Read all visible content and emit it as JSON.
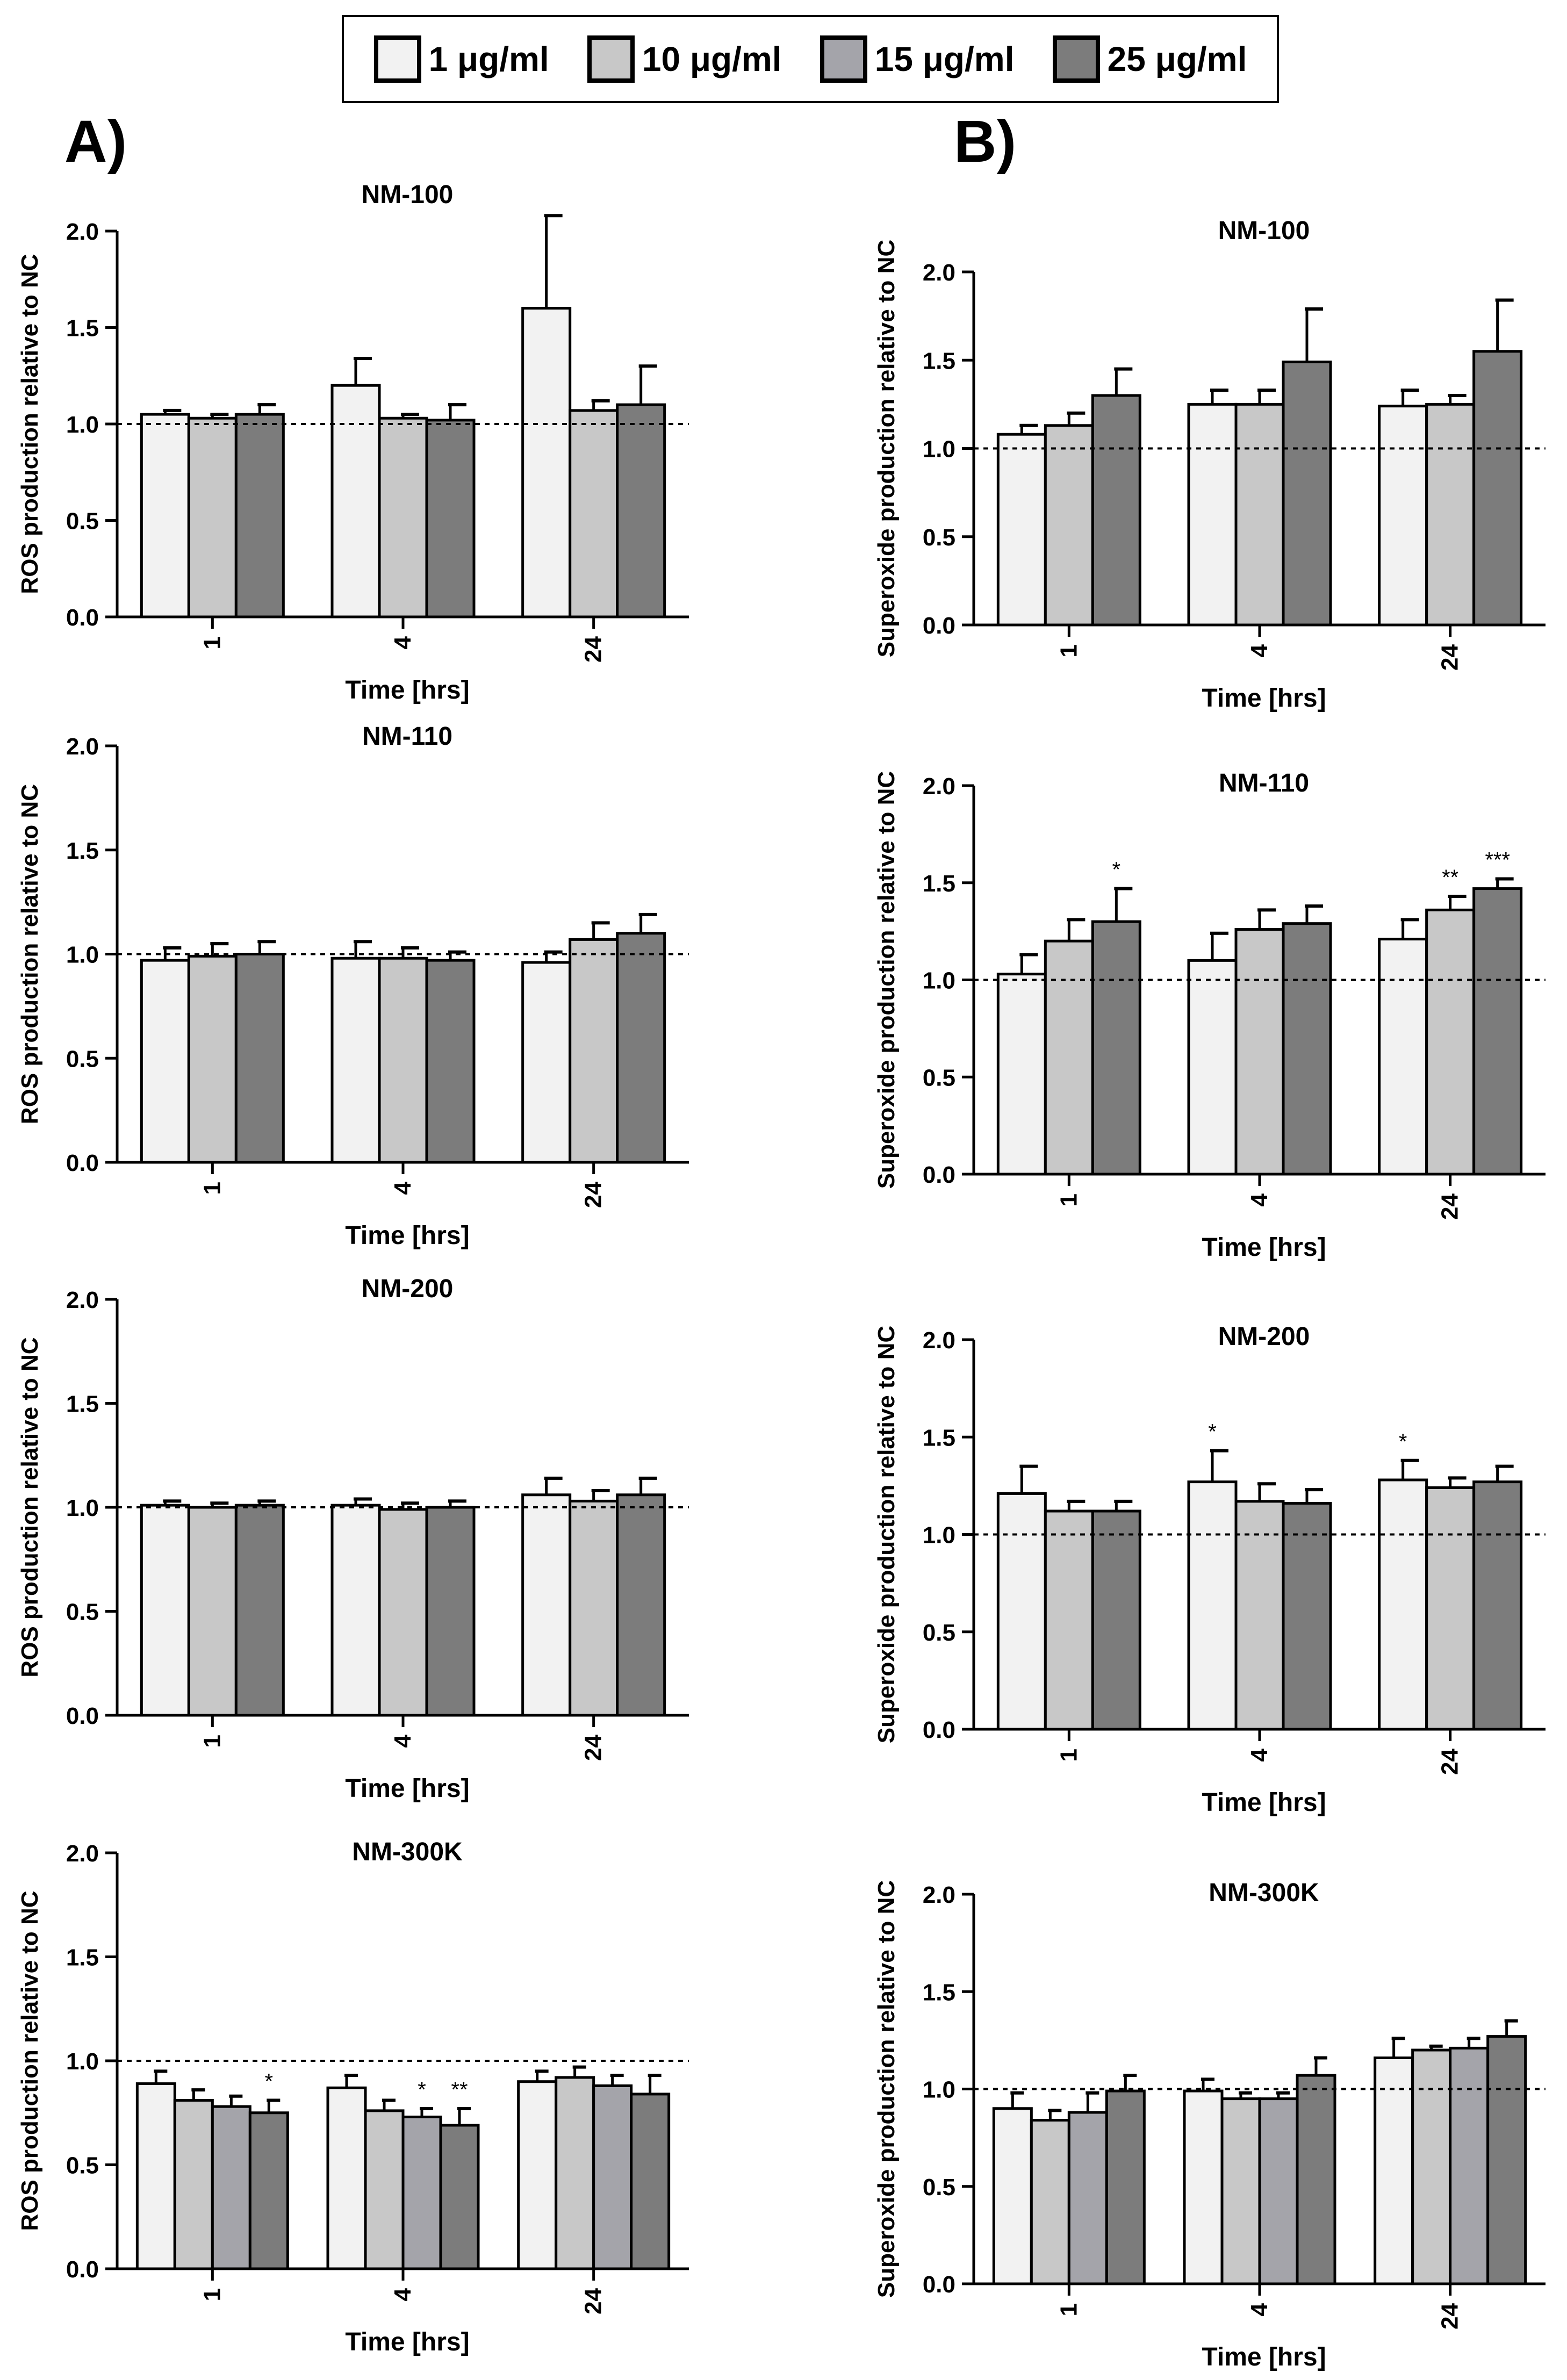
{
  "legend": [
    {
      "label": "1 μg/ml",
      "color": "#f2f2f2"
    },
    {
      "label": "10 μg/ml",
      "color": "#c8c8c8"
    },
    {
      "label": "15 μg/ml",
      "color": "#a4a4aa"
    },
    {
      "label": "25 μg/ml",
      "color": "#7c7c7c"
    }
  ],
  "panels": {
    "A": "A)",
    "B": "B)"
  },
  "axis_common": {
    "ticks": [
      "0.0",
      "0.5",
      "1.0",
      "1.5",
      "2.0"
    ],
    "xlabel": "Time [hrs]"
  },
  "chart_data": [
    {
      "type": "bar",
      "panel": "A",
      "title": "NM-100",
      "xlabel": "Time [hrs]",
      "ylabel": "ROS production relative to NC",
      "categories": [
        "1",
        "4",
        "24"
      ],
      "ylim": [
        0,
        2.0
      ],
      "reference_line": 1.0,
      "series": [
        {
          "name": "1 μg/ml",
          "values": [
            1.05,
            1.2,
            1.6
          ],
          "errors": [
            0.02,
            0.14,
            0.48
          ],
          "sig": [
            "",
            "",
            ""
          ]
        },
        {
          "name": "10 μg/ml",
          "values": [
            1.03,
            1.03,
            1.07
          ],
          "errors": [
            0.02,
            0.02,
            0.05
          ],
          "sig": [
            "",
            "",
            ""
          ]
        },
        {
          "name": "25 μg/ml",
          "values": [
            1.05,
            1.02,
            1.1
          ],
          "errors": [
            0.05,
            0.08,
            0.2
          ],
          "sig": [
            "",
            "",
            ""
          ]
        }
      ]
    },
    {
      "type": "bar",
      "panel": "A",
      "title": "NM-110",
      "xlabel": "Time [hrs]",
      "ylabel": "ROS production relative to NC",
      "categories": [
        "1",
        "4",
        "24"
      ],
      "ylim": [
        0,
        2.0
      ],
      "reference_line": 1.0,
      "series": [
        {
          "name": "1 μg/ml",
          "values": [
            0.97,
            0.98,
            0.96
          ],
          "errors": [
            0.06,
            0.08,
            0.05
          ],
          "sig": [
            "",
            "",
            ""
          ]
        },
        {
          "name": "10 μg/ml",
          "values": [
            0.99,
            0.98,
            1.07
          ],
          "errors": [
            0.06,
            0.05,
            0.08
          ],
          "sig": [
            "",
            "",
            ""
          ]
        },
        {
          "name": "25 μg/ml",
          "values": [
            1.0,
            0.97,
            1.1
          ],
          "errors": [
            0.06,
            0.04,
            0.09
          ],
          "sig": [
            "",
            "",
            ""
          ]
        }
      ]
    },
    {
      "type": "bar",
      "panel": "A",
      "title": "NM-200",
      "xlabel": "Time [hrs]",
      "ylabel": "ROS production relative to NC",
      "categories": [
        "1",
        "4",
        "24"
      ],
      "ylim": [
        0,
        2.0
      ],
      "reference_line": 1.0,
      "series": [
        {
          "name": "1 μg/ml",
          "values": [
            1.01,
            1.01,
            1.06
          ],
          "errors": [
            0.02,
            0.03,
            0.08
          ],
          "sig": [
            "",
            "",
            ""
          ]
        },
        {
          "name": "10 μg/ml",
          "values": [
            1.0,
            0.99,
            1.03
          ],
          "errors": [
            0.02,
            0.03,
            0.05
          ],
          "sig": [
            "",
            "",
            ""
          ]
        },
        {
          "name": "25 μg/ml",
          "values": [
            1.01,
            1.0,
            1.06
          ],
          "errors": [
            0.02,
            0.03,
            0.08
          ],
          "sig": [
            "",
            "",
            ""
          ]
        }
      ]
    },
    {
      "type": "bar",
      "panel": "A",
      "title": "NM-300K",
      "xlabel": "Time [hrs]",
      "ylabel": "ROS production relative to NC",
      "categories": [
        "1",
        "4",
        "24"
      ],
      "ylim": [
        0,
        2.0
      ],
      "reference_line": 1.0,
      "series": [
        {
          "name": "1 μg/ml",
          "values": [
            0.89,
            0.87,
            0.9
          ],
          "errors": [
            0.06,
            0.06,
            0.05
          ],
          "sig": [
            "",
            "",
            ""
          ]
        },
        {
          "name": "10 μg/ml",
          "values": [
            0.81,
            0.76,
            0.92
          ],
          "errors": [
            0.05,
            0.05,
            0.05
          ],
          "sig": [
            "",
            "",
            ""
          ]
        },
        {
          "name": "15 μg/ml",
          "values": [
            0.78,
            0.73,
            0.88
          ],
          "errors": [
            0.05,
            0.04,
            0.05
          ],
          "sig": [
            "",
            "*",
            ""
          ]
        },
        {
          "name": "25 μg/ml",
          "values": [
            0.75,
            0.69,
            0.84
          ],
          "errors": [
            0.06,
            0.08,
            0.09
          ],
          "sig": [
            "*",
            "**",
            ""
          ]
        }
      ]
    },
    {
      "type": "bar",
      "panel": "B",
      "title": "NM-100",
      "xlabel": "Time [hrs]",
      "ylabel": "Superoxide production relative to NC",
      "categories": [
        "1",
        "4",
        "24"
      ],
      "ylim": [
        0,
        2.0
      ],
      "reference_line": 1.0,
      "series": [
        {
          "name": "1 μg/ml",
          "values": [
            1.08,
            1.25,
            1.24
          ],
          "errors": [
            0.05,
            0.08,
            0.09
          ],
          "sig": [
            "",
            "",
            ""
          ]
        },
        {
          "name": "10 μg/ml",
          "values": [
            1.13,
            1.25,
            1.25
          ],
          "errors": [
            0.07,
            0.08,
            0.05
          ],
          "sig": [
            "",
            "",
            ""
          ]
        },
        {
          "name": "25 μg/ml",
          "values": [
            1.3,
            1.49,
            1.55
          ],
          "errors": [
            0.15,
            0.3,
            0.29
          ],
          "sig": [
            "",
            "",
            ""
          ]
        }
      ]
    },
    {
      "type": "bar",
      "panel": "B",
      "title": "NM-110",
      "xlabel": "Time [hrs]",
      "ylabel": "Superoxide production relative to NC",
      "categories": [
        "1",
        "4",
        "24"
      ],
      "ylim": [
        0,
        2.0
      ],
      "reference_line": 1.0,
      "series": [
        {
          "name": "1 μg/ml",
          "values": [
            1.03,
            1.1,
            1.21
          ],
          "errors": [
            0.1,
            0.14,
            0.1
          ],
          "sig": [
            "",
            "",
            ""
          ]
        },
        {
          "name": "10 μg/ml",
          "values": [
            1.2,
            1.26,
            1.36
          ],
          "errors": [
            0.11,
            0.1,
            0.07
          ],
          "sig": [
            "",
            "",
            "**"
          ]
        },
        {
          "name": "25 μg/ml",
          "values": [
            1.3,
            1.29,
            1.47
          ],
          "errors": [
            0.17,
            0.09,
            0.05
          ],
          "sig": [
            "*",
            "",
            "***"
          ]
        }
      ]
    },
    {
      "type": "bar",
      "panel": "B",
      "title": "NM-200",
      "xlabel": "Time [hrs]",
      "ylabel": "Superoxide production relative to NC",
      "categories": [
        "1",
        "4",
        "24"
      ],
      "ylim": [
        0,
        2.0
      ],
      "reference_line": 1.0,
      "series": [
        {
          "name": "1 μg/ml",
          "values": [
            1.21,
            1.27,
            1.28
          ],
          "errors": [
            0.14,
            0.16,
            0.1
          ],
          "sig": [
            "",
            "*",
            "*"
          ]
        },
        {
          "name": "10 μg/ml",
          "values": [
            1.12,
            1.17,
            1.24
          ],
          "errors": [
            0.05,
            0.09,
            0.05
          ],
          "sig": [
            "",
            "",
            ""
          ]
        },
        {
          "name": "25 μg/ml",
          "values": [
            1.12,
            1.16,
            1.27
          ],
          "errors": [
            0.05,
            0.07,
            0.08
          ],
          "sig": [
            "",
            "",
            ""
          ]
        }
      ]
    },
    {
      "type": "bar",
      "panel": "B",
      "title": "NM-300K",
      "xlabel": "Time [hrs]",
      "ylabel": "Superoxide production relative to NC",
      "categories": [
        "1",
        "4",
        "24"
      ],
      "ylim": [
        0,
        2.0
      ],
      "reference_line": 1.0,
      "series": [
        {
          "name": "1 μg/ml",
          "values": [
            0.9,
            0.99,
            1.16
          ],
          "errors": [
            0.08,
            0.06,
            0.1
          ],
          "sig": [
            "",
            "",
            ""
          ]
        },
        {
          "name": "10 μg/ml",
          "values": [
            0.84,
            0.95,
            1.2
          ],
          "errors": [
            0.05,
            0.03,
            0.02
          ],
          "sig": [
            "",
            "",
            ""
          ]
        },
        {
          "name": "15 μg/ml",
          "values": [
            0.88,
            0.95,
            1.21
          ],
          "errors": [
            0.1,
            0.03,
            0.05
          ],
          "sig": [
            "",
            "",
            ""
          ]
        },
        {
          "name": "25 μg/ml",
          "values": [
            0.99,
            1.07,
            1.27
          ],
          "errors": [
            0.08,
            0.09,
            0.08
          ],
          "sig": [
            "",
            "",
            ""
          ]
        }
      ]
    }
  ]
}
